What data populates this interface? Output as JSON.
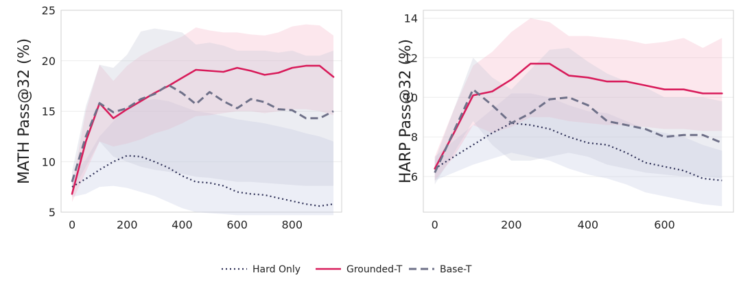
{
  "chart_data": [
    {
      "type": "line",
      "ylabel": "MATH Pass@32 (%)",
      "xlabel": "",
      "xlim": [
        -40,
        980
      ],
      "ylim": [
        5,
        25
      ],
      "xticks": [
        0,
        200,
        400,
        600,
        800
      ],
      "yticks": [
        5,
        10,
        15,
        20,
        25
      ],
      "grid": true,
      "series": [
        {
          "name": "Hard Only",
          "x": [
            0,
            50,
            100,
            150,
            200,
            250,
            300,
            350,
            400,
            450,
            500,
            550,
            600,
            650,
            700,
            750,
            800,
            850,
            900,
            950
          ],
          "values": [
            7.5,
            8.3,
            9.2,
            10.0,
            10.6,
            10.5,
            10.0,
            9.4,
            8.6,
            8.0,
            7.9,
            7.6,
            7.0,
            6.8,
            6.7,
            6.4,
            6.1,
            5.8,
            5.6,
            5.8
          ],
          "lower": [
            6.5,
            6.8,
            7.5,
            7.6,
            7.4,
            7.0,
            6.6,
            6.0,
            5.4,
            5.0,
            4.9,
            4.8,
            4.7,
            4.7,
            4.7,
            4.7,
            4.7,
            4.7,
            4.7,
            4.7
          ],
          "upper": [
            8.5,
            10.2,
            12.5,
            14.0,
            15.5,
            16.0,
            16.2,
            16.0,
            15.5,
            15.0,
            14.8,
            14.5,
            14.2,
            14.0,
            13.8,
            13.5,
            13.2,
            12.8,
            12.5,
            12.0
          ]
        },
        {
          "name": "Grounded-T",
          "x": [
            0,
            50,
            100,
            150,
            200,
            250,
            300,
            350,
            400,
            450,
            500,
            550,
            600,
            650,
            700,
            750,
            800,
            850,
            900,
            950
          ],
          "values": [
            6.8,
            12.0,
            15.8,
            14.3,
            15.2,
            16.0,
            16.8,
            17.5,
            18.3,
            19.1,
            19.0,
            18.9,
            19.3,
            19.0,
            18.6,
            18.8,
            19.3,
            19.5,
            19.5,
            18.4
          ],
          "lower": [
            6.0,
            9.0,
            12.0,
            11.5,
            11.8,
            12.2,
            12.8,
            13.2,
            13.8,
            14.5,
            14.6,
            14.8,
            15.0,
            15.0,
            14.8,
            15.0,
            15.2,
            15.2,
            15.0,
            14.6
          ],
          "upper": [
            7.6,
            15.0,
            19.6,
            18.0,
            19.5,
            20.5,
            21.2,
            21.8,
            22.4,
            23.3,
            23.0,
            22.8,
            22.8,
            22.6,
            22.5,
            22.8,
            23.4,
            23.6,
            23.5,
            22.5
          ]
        },
        {
          "name": "Base-T",
          "x": [
            0,
            50,
            100,
            150,
            200,
            250,
            300,
            350,
            400,
            450,
            500,
            550,
            600,
            650,
            700,
            750,
            800,
            850,
            900,
            950
          ],
          "values": [
            8.0,
            12.5,
            15.8,
            14.9,
            15.3,
            16.2,
            16.7,
            17.6,
            16.8,
            15.7,
            16.9,
            16.0,
            15.3,
            16.2,
            15.9,
            15.2,
            15.1,
            14.3,
            14.3,
            15.0
          ],
          "lower": [
            7.0,
            9.5,
            12.0,
            10.5,
            10.0,
            9.5,
            9.2,
            9.0,
            8.8,
            8.5,
            8.4,
            8.2,
            8.0,
            8.0,
            7.9,
            7.8,
            7.7,
            7.6,
            7.6,
            7.6
          ],
          "upper": [
            9.0,
            15.5,
            19.6,
            19.3,
            20.6,
            22.9,
            23.2,
            23.0,
            22.8,
            21.6,
            21.8,
            21.5,
            21.0,
            21.0,
            21.0,
            20.8,
            21.0,
            20.5,
            20.5,
            21.0
          ]
        }
      ]
    },
    {
      "type": "line",
      "ylabel": "HARP Pass@32 (%)",
      "xlabel": "",
      "xlim": [
        -30,
        780
      ],
      "ylim": [
        4.2,
        14.4
      ],
      "xticks": [
        0,
        200,
        400,
        600
      ],
      "yticks": [
        6,
        8,
        10,
        12,
        14
      ],
      "grid": true,
      "series": [
        {
          "name": "Hard Only",
          "x": [
            0,
            50,
            100,
            150,
            200,
            250,
            300,
            350,
            400,
            450,
            500,
            550,
            600,
            650,
            700,
            750
          ],
          "values": [
            6.4,
            7.0,
            7.6,
            8.2,
            8.7,
            8.6,
            8.4,
            8.0,
            7.7,
            7.6,
            7.2,
            6.7,
            6.5,
            6.3,
            5.9,
            5.8
          ],
          "lower": [
            5.8,
            6.2,
            6.6,
            6.9,
            7.2,
            7.0,
            6.8,
            6.4,
            6.1,
            5.9,
            5.6,
            5.2,
            5.0,
            4.8,
            4.6,
            4.5
          ],
          "upper": [
            7.0,
            7.8,
            8.6,
            9.4,
            10.2,
            10.2,
            10.0,
            9.6,
            9.3,
            9.2,
            8.8,
            8.4,
            8.2,
            8.0,
            7.6,
            7.3
          ]
        },
        {
          "name": "Grounded-T",
          "x": [
            0,
            50,
            100,
            150,
            200,
            250,
            300,
            350,
            400,
            450,
            500,
            550,
            600,
            650,
            700,
            750
          ],
          "values": [
            6.4,
            8.2,
            10.1,
            10.3,
            10.9,
            11.7,
            11.7,
            11.1,
            11.0,
            10.8,
            10.8,
            10.6,
            10.4,
            10.4,
            10.2,
            10.2
          ],
          "lower": [
            5.8,
            7.0,
            8.6,
            8.2,
            8.5,
            9.0,
            9.0,
            8.8,
            8.7,
            8.6,
            8.6,
            8.5,
            8.4,
            8.4,
            8.3,
            8.3
          ],
          "upper": [
            7.0,
            9.4,
            11.6,
            12.3,
            13.3,
            14.0,
            13.8,
            13.1,
            13.1,
            13.0,
            12.9,
            12.7,
            12.8,
            13.0,
            12.5,
            13.0
          ]
        },
        {
          "name": "Base-T",
          "x": [
            0,
            50,
            100,
            150,
            200,
            250,
            300,
            350,
            400,
            450,
            500,
            550,
            600,
            650,
            700,
            750
          ],
          "values": [
            6.2,
            8.3,
            10.4,
            9.6,
            8.7,
            9.2,
            9.9,
            10.0,
            9.6,
            8.8,
            8.6,
            8.4,
            8.0,
            8.1,
            8.1,
            7.7
          ],
          "lower": [
            5.6,
            7.2,
            8.8,
            7.6,
            6.8,
            6.8,
            7.0,
            7.2,
            7.0,
            6.6,
            6.4,
            6.2,
            6.1,
            6.0,
            6.0,
            5.9
          ],
          "upper": [
            6.8,
            9.4,
            12.0,
            11.0,
            10.4,
            11.4,
            12.4,
            12.5,
            11.8,
            11.2,
            10.8,
            10.5,
            10.0,
            10.0,
            10.0,
            9.8
          ]
        }
      ]
    }
  ],
  "legend": {
    "placement": "bottom-center",
    "items": [
      {
        "label": "Hard Only",
        "style": "dotted",
        "color": "#2b2d54"
      },
      {
        "label": "Grounded-T",
        "style": "solid",
        "color": "#d81b5a"
      },
      {
        "label": "Base-T",
        "style": "dashed",
        "color": "#6e7088"
      }
    ]
  },
  "colors": {
    "hard_only": "#2b2d54",
    "grounded_t": "#d81b5a",
    "base_t": "#6e7088",
    "hard_only_band": "#c9cde4",
    "grounded_t_band": "#f3a8bf",
    "base_t_band": "#c6c9d8",
    "grid": "#ececec",
    "axis": "#cfcfcf"
  }
}
